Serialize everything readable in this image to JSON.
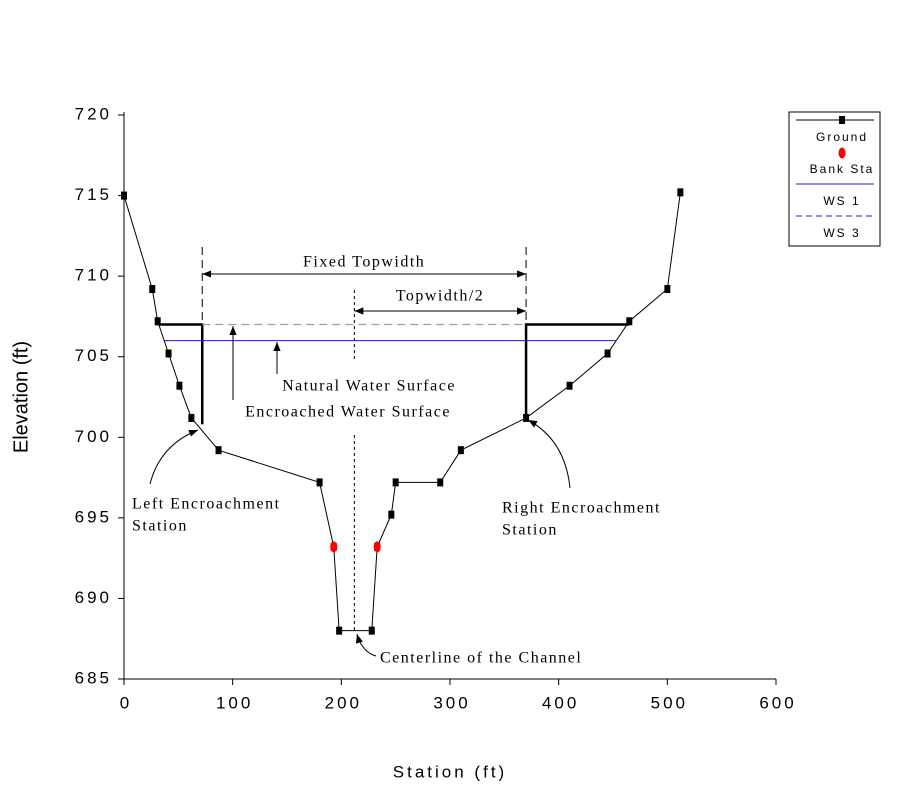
{
  "chart_data": {
    "type": "line",
    "x_label": "Station (ft)",
    "y_label": "Elevation (ft)",
    "xlim": [
      0,
      600
    ],
    "ylim": [
      685,
      720
    ],
    "xticks": [
      0,
      100,
      200,
      300,
      400,
      500,
      600
    ],
    "yticks": [
      685,
      690,
      695,
      700,
      705,
      710,
      715,
      720
    ],
    "legend": "top-right",
    "series": [
      {
        "name": "Ground",
        "color": "#000000",
        "style": "solid-markers",
        "x": [
          0,
          26,
          31,
          41,
          51,
          62,
          87,
          180,
          193,
          198,
          228,
          233,
          246,
          250,
          291,
          310,
          370,
          410,
          445,
          465,
          500,
          512
        ],
        "values": [
          715,
          709.2,
          707.2,
          705.2,
          703.2,
          701.2,
          699.2,
          697.2,
          693.2,
          688,
          688,
          693.2,
          695.2,
          697.2,
          697.2,
          699.2,
          701.2,
          703.2,
          705.2,
          707.2,
          709.2,
          715.2
        ]
      },
      {
        "name": "Bank Sta",
        "color": "#ff0000",
        "style": "points",
        "x": [
          193,
          233
        ],
        "values": [
          693.2,
          693.2
        ]
      },
      {
        "name": "WS 1",
        "color": "#2020a0",
        "style": "solid",
        "x": [
          37,
          453
        ],
        "values": [
          706,
          706
        ]
      },
      {
        "name": "WS 3",
        "color": "#2020c0",
        "plot_color": "#a0a0a0",
        "style": "dashed",
        "x": [
          72,
          370
        ],
        "values": [
          707,
          707
        ]
      }
    ],
    "encroachment_lines": [
      {
        "x": [
          31,
          72,
          72
        ],
        "values": [
          707,
          707,
          700.8
        ]
      },
      {
        "x": [
          370,
          370,
          465
        ],
        "values": [
          701.2,
          707,
          707
        ]
      }
    ],
    "centerline_station": 212,
    "annotations": {
      "fixed_topwidth": "Fixed Topwidth",
      "half_topwidth": "Topwidth/2",
      "natural_ws": "Natural Water Surface",
      "encroached_ws": "Encroached Water Surface",
      "left_station": [
        "Left Encroachment",
        "Station"
      ],
      "right_station": [
        "Right Encroachment",
        "Station"
      ],
      "centerline": "Centerline of the Channel"
    }
  }
}
